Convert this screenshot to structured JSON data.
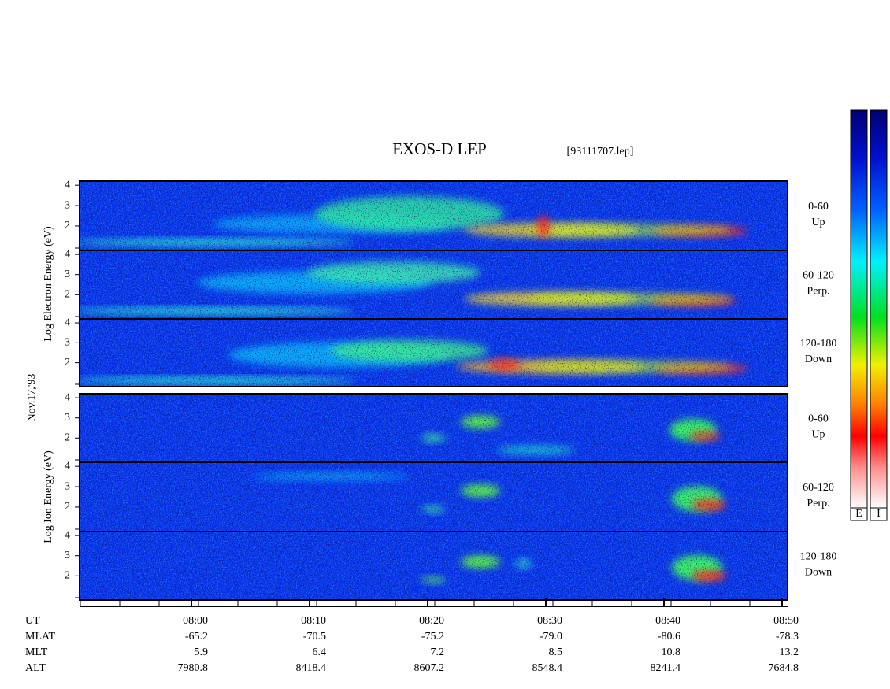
{
  "title": "EXOS-D LEP",
  "file": "[93111707.lep]",
  "date": "Nov.17,'93",
  "ylim": [
    0.8,
    4.2
  ],
  "yticks": [
    2,
    3,
    4
  ],
  "groups": [
    {
      "axis_label": "Log Electron Energy (eV)",
      "panels": [
        {
          "label": [
            "0-60",
            "Up"
          ]
        },
        {
          "label": [
            "60-120",
            "Perp."
          ]
        },
        {
          "label": [
            "120-180",
            "Down"
          ]
        }
      ]
    },
    {
      "axis_label": "Log Ion Energy (eV)",
      "panels": [
        {
          "label": [
            "0-60",
            "Up"
          ]
        },
        {
          "label": [
            "60-120",
            "Perp."
          ]
        },
        {
          "label": [
            "120-180",
            "Down"
          ]
        }
      ]
    }
  ],
  "time_axis": {
    "rows": [
      {
        "label": "UT",
        "values": [
          "08:00",
          "08:10",
          "08:20",
          "08:30",
          "08:40",
          "08:50"
        ]
      },
      {
        "label": "MLAT",
        "values": [
          "-65.2",
          "-70.5",
          "-75.2",
          "-79.0",
          "-80.6",
          "-78.3"
        ]
      },
      {
        "label": "MLT",
        "values": [
          "5.9",
          "6.4",
          "7.2",
          "8.5",
          "10.8",
          "13.2"
        ]
      },
      {
        "label": "ALT",
        "values": [
          "7980.8",
          "8418.4",
          "8607.2",
          "8548.4",
          "8241.4",
          "7684.8"
        ]
      }
    ]
  },
  "colorbars": [
    "E",
    "I"
  ]
}
